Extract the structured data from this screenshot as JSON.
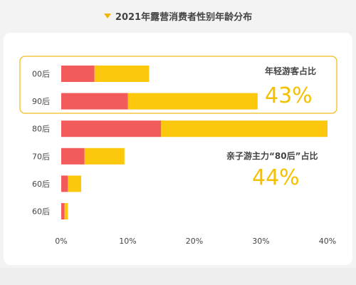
{
  "title": "2021年露营消费者性别年龄分布",
  "colors": {
    "red": "#f25b5b",
    "yellow": "#fcc80e",
    "highlight": "#f5c000",
    "background": "#f3f3f3"
  },
  "annotations": {
    "young": {
      "label": "年轻游客占比",
      "value": "43%"
    },
    "family": {
      "label": "亲子游主力“80后”占比",
      "value": "44%"
    }
  },
  "chart_data": {
    "type": "bar",
    "orientation": "horizontal",
    "stacked": true,
    "title": "2021年露营消费者性别年龄分布",
    "categories": [
      "00后",
      "90后",
      "80后",
      "70后",
      "60后",
      "60后"
    ],
    "series": [
      {
        "values": [
          5,
          10,
          15,
          3.5,
          1,
          0.5
        ]
      },
      {
        "values": [
          8.2,
          19.5,
          25,
          6,
          2,
          0.5
        ]
      }
    ],
    "xlim": [
      0,
      40
    ],
    "ticks": [
      0,
      10,
      20,
      30,
      40
    ],
    "tick_labels": [
      "0%",
      "10%",
      "20%",
      "30%",
      "40%"
    ],
    "grid": false,
    "highlight_group": [
      "00后",
      "90后"
    ]
  }
}
